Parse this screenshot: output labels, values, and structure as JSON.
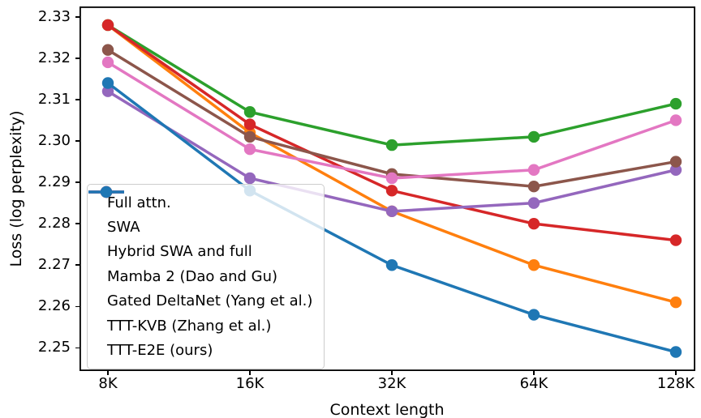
{
  "figure": {
    "background": "#ffffff",
    "axis_color": "#000000"
  },
  "chart_data": {
    "type": "line",
    "title": "",
    "xlabel": "Context length",
    "ylabel": "Loss (log perplexity)",
    "x_scale": "log2-categorical",
    "categories": [
      "8K",
      "16K",
      "32K",
      "64K",
      "128K"
    ],
    "y_tick_labels": [
      "2.25",
      "2.26",
      "2.27",
      "2.28",
      "2.29",
      "2.30",
      "2.31",
      "2.32",
      "2.33"
    ],
    "y_tick_values": [
      2.25,
      2.26,
      2.27,
      2.28,
      2.29,
      2.3,
      2.31,
      2.32,
      2.33
    ],
    "ylim": [
      2.2444,
      2.3325
    ],
    "grid": false,
    "legend_position": "lower-left",
    "series": [
      {
        "name": "Full attn.",
        "color": "#ff7f0e",
        "values": [
          2.328,
          2.302,
          2.283,
          2.27,
          2.261
        ]
      },
      {
        "name": "SWA",
        "color": "#2ca02c",
        "values": [
          2.328,
          2.307,
          2.299,
          2.301,
          2.309
        ]
      },
      {
        "name": "Hybrid SWA and full",
        "color": "#d62728",
        "values": [
          2.328,
          2.304,
          2.288,
          2.28,
          2.276
        ]
      },
      {
        "name": "Mamba 2 (Dao and Gu)",
        "color": "#9467bd",
        "values": [
          2.312,
          2.291,
          2.283,
          2.285,
          2.293
        ]
      },
      {
        "name": "Gated DeltaNet (Yang et al.)",
        "color": "#8c564b",
        "values": [
          2.322,
          2.301,
          2.292,
          2.289,
          2.295
        ]
      },
      {
        "name": "TTT-KVB (Zhang et al.)",
        "color": "#e377c2",
        "values": [
          2.319,
          2.298,
          2.291,
          2.293,
          2.305
        ]
      },
      {
        "name": "TTT-E2E (ours)",
        "color": "#1f77b4",
        "values": [
          2.314,
          2.288,
          2.27,
          2.258,
          2.249
        ]
      }
    ]
  }
}
